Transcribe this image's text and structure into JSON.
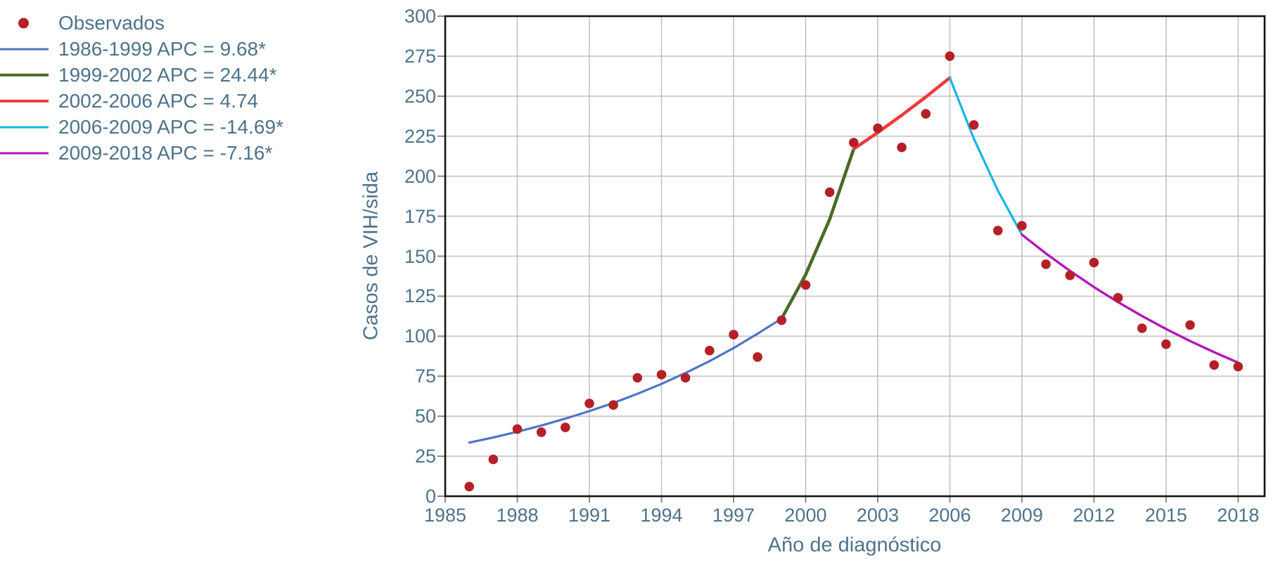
{
  "legend": {
    "items": [
      {
        "label": "Observados",
        "marker": "dot",
        "color": "#b42025",
        "thickness": 15
      },
      {
        "label": "1986-1999 APC = 9.68*",
        "marker": "line",
        "color": "#4f74c6",
        "thickness": 3
      },
      {
        "label": "1999-2002 APC = 24.44*",
        "marker": "line",
        "color": "#486b24",
        "thickness": 4.5
      },
      {
        "label": "2002-2006 APC = 4.74",
        "marker": "line",
        "color": "#ec3a3c",
        "thickness": 4.5
      },
      {
        "label": "2006-2009 APC = -14.69*",
        "marker": "line",
        "color": "#14b4e6",
        "thickness": 3
      },
      {
        "label": "2009-2018 APC = -7.16*",
        "marker": "line",
        "color": "#b316ba",
        "thickness": 3
      }
    ]
  },
  "chart_data": {
    "type": "scatter",
    "title": "",
    "xlabel": "Año de diagnóstico",
    "ylabel": "Casos de VIH/sida",
    "xlim": [
      1985,
      2019.1
    ],
    "ylim": [
      0,
      300
    ],
    "x_ticks": [
      1985,
      1988,
      1991,
      1994,
      1997,
      2000,
      2003,
      2006,
      2009,
      2012,
      2015,
      2018
    ],
    "y_ticks": [
      0,
      25,
      50,
      75,
      100,
      125,
      150,
      175,
      200,
      225,
      250,
      275,
      300
    ],
    "grid": true,
    "legend_position": "top-left-outside",
    "observed": {
      "name": "Observados",
      "color": "#b42025",
      "marker_radius": 6.8,
      "years": [
        1986,
        1987,
        1988,
        1989,
        1990,
        1991,
        1992,
        1993,
        1994,
        1995,
        1996,
        1997,
        1998,
        1999,
        2000,
        2001,
        2002,
        2003,
        2004,
        2005,
        2006,
        2007,
        2008,
        2009,
        2010,
        2011,
        2012,
        2013,
        2014,
        2015,
        2016,
        2017,
        2018
      ],
      "values": [
        6,
        23,
        42,
        40,
        43,
        58,
        57,
        74,
        76,
        74,
        91,
        101,
        87,
        110,
        132,
        190,
        221,
        230,
        218,
        239,
        275,
        232,
        166,
        169,
        145,
        138,
        146,
        124,
        105,
        95,
        107,
        82,
        81
      ]
    },
    "segments": [
      {
        "name": "1986-1999 APC = 9.68*",
        "apc": 9.68,
        "color": "#4f74c6",
        "width": 3.2,
        "years": [
          1986,
          1987,
          1988,
          1989,
          1990,
          1991,
          1992,
          1993,
          1994,
          1995,
          1996,
          1997,
          1998,
          1999
        ],
        "values": [
          33.5,
          36.7,
          40.3,
          44.2,
          48.5,
          53.2,
          58.3,
          64.0,
          70.2,
          77.0,
          84.4,
          92.6,
          101.6,
          111
        ]
      },
      {
        "name": "1999-2002 APC = 24.44*",
        "apc": 24.44,
        "color": "#486b24",
        "width": 4.6,
        "years": [
          1999,
          2000,
          2001,
          2002
        ],
        "values": [
          111,
          138.5,
          173,
          217
        ]
      },
      {
        "name": "2002-2006 APC = 4.74",
        "apc": 4.74,
        "color": "#ec3a3c",
        "width": 4.6,
        "years": [
          2002,
          2003,
          2004,
          2005,
          2006
        ],
        "values": [
          217,
          227.3,
          238.1,
          249.5,
          261.5
        ]
      },
      {
        "name": "2006-2009 APC = -14.69*",
        "apc": -14.69,
        "color": "#14b4e6",
        "width": 3.2,
        "years": [
          2006,
          2007,
          2008,
          2009
        ],
        "values": [
          261.5,
          223.5,
          191,
          163.5
        ]
      },
      {
        "name": "2009-2018 APC = -7.16*",
        "apc": -7.16,
        "color": "#b316ba",
        "width": 3.4,
        "years": [
          2009,
          2010,
          2011,
          2012,
          2013,
          2014,
          2015,
          2016,
          2017,
          2018
        ],
        "values": [
          163.5,
          151.7,
          140.8,
          130.7,
          121.3,
          112.6,
          104.5,
          97.0,
          90.0,
          83.5
        ]
      }
    ]
  },
  "style": {
    "text_color": "#4d7389",
    "grid_color": "#c2c2c2",
    "axis_color": "#141414",
    "tick_color": "#8a8a8a",
    "background": "#ffffff"
  }
}
